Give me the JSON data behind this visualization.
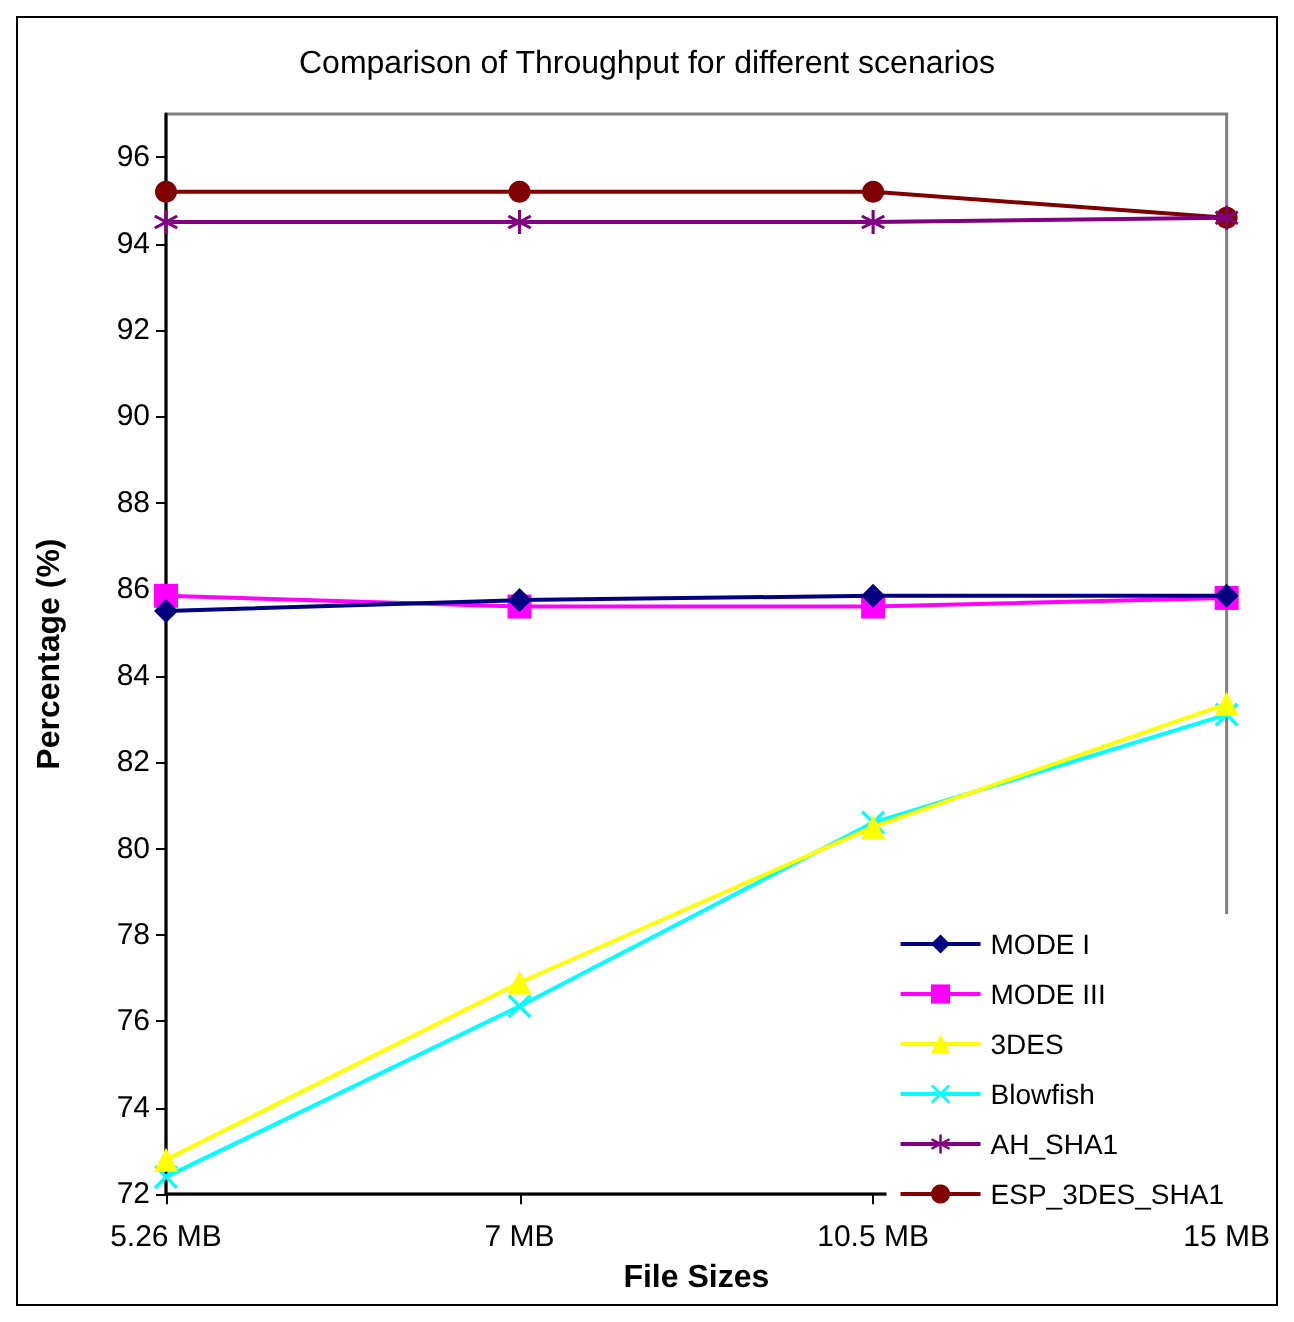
{
  "chart_data": {
    "type": "line",
    "title": "Comparison of Throughput for different scenarios",
    "xlabel": "File Sizes",
    "ylabel": "Percentage (%)",
    "categories": [
      "5.26 MB",
      "7 MB",
      "10.5 MB",
      "15 MB"
    ],
    "series": [
      {
        "name": "MODE I",
        "color": "#000080",
        "marker": "diamond",
        "values": [
          85.5,
          85.75,
          85.85,
          85.85
        ]
      },
      {
        "name": "MODE III",
        "color": "#ff00ff",
        "marker": "square",
        "values": [
          85.85,
          85.6,
          85.6,
          85.8
        ]
      },
      {
        "name": "3DES",
        "color": "#ffff00",
        "marker": "triangle",
        "values": [
          72.8,
          76.9,
          80.5,
          83.35
        ]
      },
      {
        "name": "Blowfish",
        "color": "#00ffff",
        "marker": "cross",
        "values": [
          72.4,
          76.35,
          80.6,
          83.1
        ]
      },
      {
        "name": "AH_SHA1",
        "color": "#800080",
        "marker": "star",
        "values": [
          94.5,
          94.5,
          94.5,
          94.6
        ]
      },
      {
        "name": "ESP_3DES_SHA1",
        "color": "#800000",
        "marker": "circle",
        "values": [
          95.2,
          95.2,
          95.2,
          94.6
        ]
      }
    ],
    "ylim": [
      72,
      97
    ],
    "yticks": [
      72,
      74,
      76,
      78,
      80,
      82,
      84,
      86,
      88,
      90,
      92,
      94,
      96
    ],
    "grid": false,
    "legend": "bottom right",
    "line_style": "solid"
  }
}
